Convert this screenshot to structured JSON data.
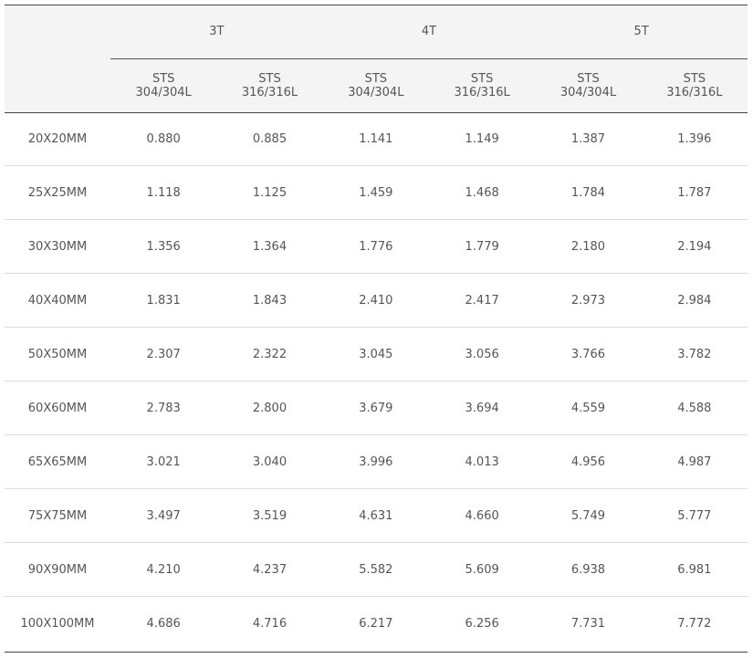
{
  "table": {
    "corner_label": "",
    "groups": [
      "3T",
      "4T",
      "5T"
    ],
    "subheaders": [
      {
        "line1": "STS",
        "line2": "304/304L"
      },
      {
        "line1": "STS",
        "line2": "316/316L"
      },
      {
        "line1": "STS",
        "line2": "304/304L"
      },
      {
        "line1": "STS",
        "line2": "316/316L"
      },
      {
        "line1": "STS",
        "line2": "304/304L"
      },
      {
        "line1": "STS",
        "line2": "316/316L"
      }
    ],
    "rows": [
      {
        "size": "20X20MM",
        "values": [
          "0.880",
          "0.885",
          "1.141",
          "1.149",
          "1.387",
          "1.396"
        ]
      },
      {
        "size": "25X25MM",
        "values": [
          "1.118",
          "1.125",
          "1.459",
          "1.468",
          "1.784",
          "1.787"
        ]
      },
      {
        "size": "30X30MM",
        "values": [
          "1.356",
          "1.364",
          "1.776",
          "1.779",
          "2.180",
          "2.194"
        ]
      },
      {
        "size": "40X40MM",
        "values": [
          "1.831",
          "1.843",
          "2.410",
          "2.417",
          "2.973",
          "2.984"
        ]
      },
      {
        "size": "50X50MM",
        "values": [
          "2.307",
          "2.322",
          "3.045",
          "3.056",
          "3.766",
          "3.782"
        ]
      },
      {
        "size": "60X60MM",
        "values": [
          "2.783",
          "2.800",
          "3.679",
          "3.694",
          "4.559",
          "4.588"
        ]
      },
      {
        "size": "65X65MM",
        "values": [
          "3.021",
          "3.040",
          "3.996",
          "4.013",
          "4.956",
          "4.987"
        ]
      },
      {
        "size": "75X75MM",
        "values": [
          "3.497",
          "3.519",
          "4.631",
          "4.660",
          "5.749",
          "5.777"
        ]
      },
      {
        "size": "90X90MM",
        "values": [
          "4.210",
          "4.237",
          "5.582",
          "5.609",
          "6.938",
          "6.981"
        ]
      },
      {
        "size": "100X100MM",
        "values": [
          "4.686",
          "4.716",
          "6.217",
          "6.256",
          "7.731",
          "7.772"
        ]
      }
    ]
  },
  "colors": {
    "header_bg": "#f4f4f4",
    "text": "#555555",
    "rule_dark": "#444444",
    "rule_light": "#dddddd"
  }
}
